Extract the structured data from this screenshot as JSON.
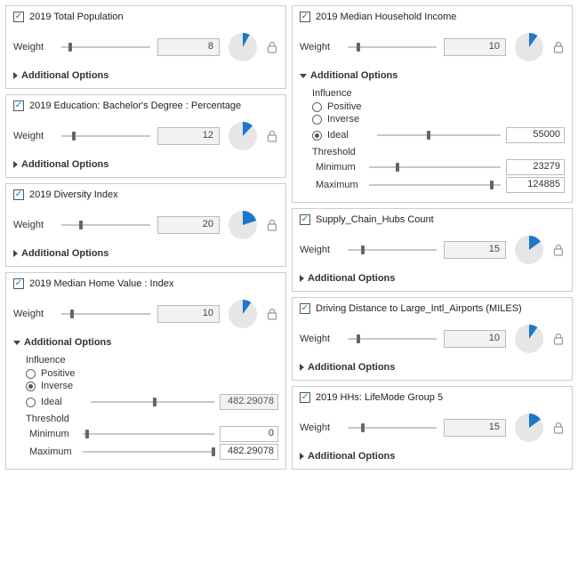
{
  "labels": {
    "weight": "Weight",
    "additional_options": "Additional Options",
    "influence": "Influence",
    "positive": "Positive",
    "inverse": "Inverse",
    "ideal": "Ideal",
    "threshold": "Threshold",
    "minimum": "Minimum",
    "maximum": "Maximum"
  },
  "colors": {
    "pie_fill": "#1f77c9",
    "pie_bg": "#e6e6e6",
    "slider_track": "#c8c8c8",
    "slider_thumb": "#666666",
    "border": "#cccccc",
    "check": "#0078d4"
  },
  "left": [
    {
      "title": "2019 Total Population",
      "checked": true,
      "weight": 8,
      "slider_pct": 8,
      "pie_pct": 8,
      "expanded": false
    },
    {
      "title": "2019 Education: Bachelor's Degree : Percentage",
      "checked": true,
      "weight": 12,
      "slider_pct": 12,
      "pie_pct": 12,
      "expanded": false
    },
    {
      "title": "2019 Diversity Index",
      "checked": true,
      "weight": 20,
      "slider_pct": 20,
      "pie_pct": 20,
      "expanded": false
    },
    {
      "title": "2019 Median Home Value : Index",
      "checked": true,
      "weight": 10,
      "slider_pct": 10,
      "pie_pct": 10,
      "expanded": true,
      "influence": "inverse",
      "ideal_value": "482.29078",
      "ideal_slider_pct": 50,
      "ideal_editable": false,
      "threshold": {
        "min_value": "0",
        "min_slider_pct": 2,
        "max_value": "482.29078",
        "max_slider_pct": 98
      }
    }
  ],
  "right": [
    {
      "title": "2019 Median Household Income",
      "checked": true,
      "weight": 10,
      "slider_pct": 10,
      "pie_pct": 10,
      "expanded": true,
      "influence": "ideal",
      "ideal_value": "55000",
      "ideal_slider_pct": 40,
      "ideal_editable": true,
      "threshold": {
        "min_value": "23279",
        "min_slider_pct": 20,
        "max_value": "124885",
        "max_slider_pct": 92
      }
    },
    {
      "title": "Supply_Chain_Hubs Count",
      "checked": true,
      "weight": 15,
      "slider_pct": 15,
      "pie_pct": 15,
      "expanded": false
    },
    {
      "title": "Driving Distance to Large_Intl_Airports (MILES)",
      "checked": true,
      "weight": 10,
      "slider_pct": 10,
      "pie_pct": 10,
      "expanded": false
    },
    {
      "title": "2019 HHs: LifeMode Group 5",
      "checked": true,
      "weight": 15,
      "slider_pct": 15,
      "pie_pct": 15,
      "expanded": false
    }
  ]
}
